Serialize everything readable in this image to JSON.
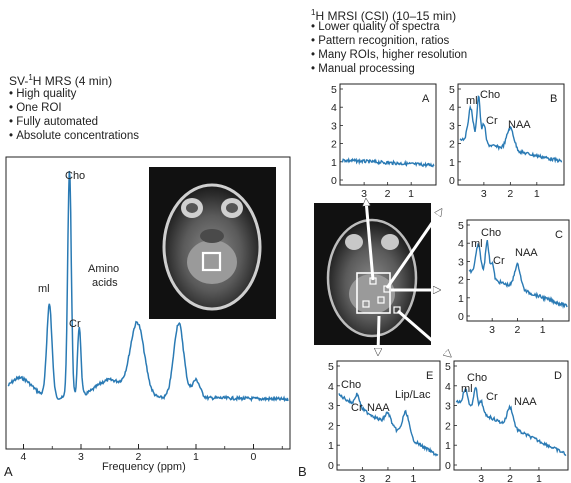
{
  "left_header": {
    "title_prefix": "SV-",
    "title_sup": "1",
    "title_rest": "H MRS (4 min)",
    "bullets": [
      "High quality",
      "One ROI",
      "Fully automated",
      "Absolute concentrations"
    ]
  },
  "right_header": {
    "title_sup": "1",
    "title_rest": "H MRSI (CSI) (10–15 min)",
    "bullets": [
      "Lower quality of spectra",
      "Pattern recognition, ratios",
      "Many ROIs, higher resolution",
      "Manual processing"
    ]
  },
  "panel_letters": {
    "left": "A",
    "right": "B"
  },
  "main_spectrum": {
    "xlabel": "Frequency (ppm)",
    "x_ticks": [
      "4",
      "3",
      "2",
      "1",
      "0"
    ],
    "peak_labels": {
      "cho": "Cho",
      "mi": "ml",
      "cr": "Cr",
      "amino_line1": "Amino",
      "amino_line2": "acids"
    }
  },
  "small_spectra": {
    "A": {
      "letter": "A",
      "y_ticks": [
        "5",
        "4",
        "3",
        "2",
        "1",
        "0"
      ],
      "x_ticks": [
        "3",
        "2",
        "1"
      ],
      "labels": []
    },
    "B": {
      "letter": "B",
      "y_ticks": [
        "5",
        "4",
        "3",
        "2",
        "1",
        "0"
      ],
      "x_ticks": [
        "3",
        "2",
        "1"
      ],
      "labels": [
        "ml",
        "Cho",
        "Cr",
        "NAA"
      ]
    },
    "C": {
      "letter": "C",
      "y_ticks": [
        "5",
        "4",
        "3",
        "2",
        "1",
        "0"
      ],
      "x_ticks": [
        "3",
        "2",
        "1"
      ],
      "labels": [
        "ml",
        "Cho",
        "Cr",
        "NAA"
      ]
    },
    "D": {
      "letter": "D",
      "y_ticks": [
        "5",
        "4",
        "3",
        "2",
        "1",
        "0"
      ],
      "x_ticks": [
        "3",
        "2",
        "1"
      ],
      "labels": [
        "ml",
        "Cho",
        "Cr",
        "NAA"
      ]
    },
    "E": {
      "letter": "E",
      "y_ticks": [
        "5",
        "4",
        "3",
        "2",
        "1",
        "0"
      ],
      "x_ticks": [
        "3",
        "2",
        "1"
      ],
      "labels": [
        "Cho",
        "Cr",
        "NAA",
        "Lip/Lac"
      ]
    }
  },
  "colors": {
    "spectrum": "#2a7ab4",
    "frame": "#222222",
    "mri_bg": "#111111"
  }
}
